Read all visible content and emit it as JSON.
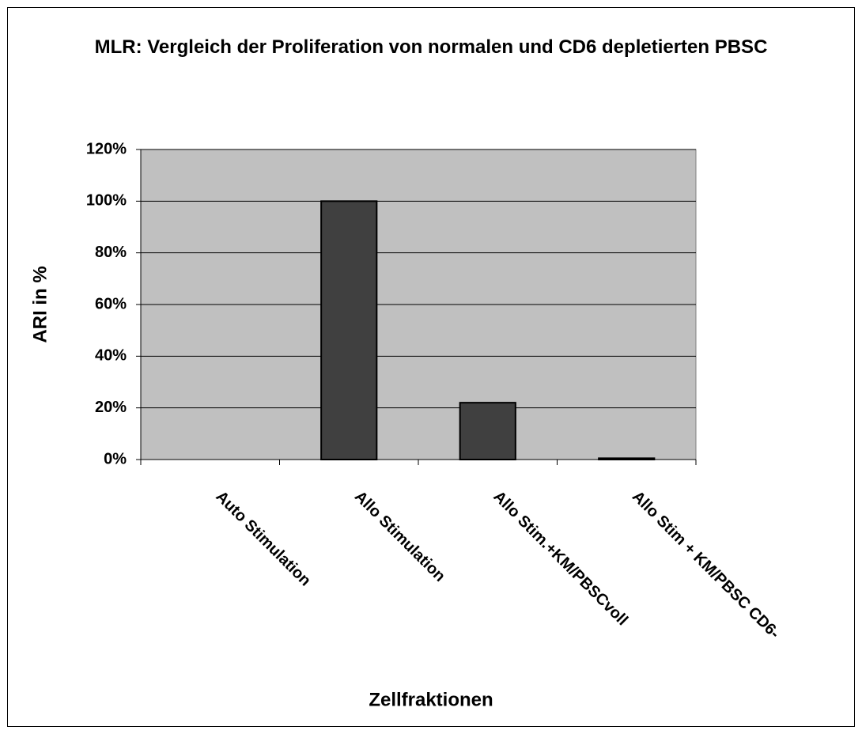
{
  "chart_data": {
    "type": "bar",
    "title": "MLR: Vergleich der Proliferation von normalen und CD6 depletierten PBSC",
    "x_label": "Zellfraktionen",
    "y_label": "ARI in %",
    "categories": [
      "Auto Stimulation",
      "Allo Stimulation",
      "Allo Stim.+KM/PBSCvoll",
      "Allo Stim + KM/PBSC CD6-"
    ],
    "values": [
      0,
      100,
      22,
      0.5
    ],
    "color": "#404040",
    "ylim": [
      0,
      120
    ],
    "yticks": [
      {
        "value": 0,
        "label": "0%"
      },
      {
        "value": 20,
        "label": "20%"
      },
      {
        "value": 40,
        "label": "40%"
      },
      {
        "value": 60,
        "label": "60%"
      },
      {
        "value": 80,
        "label": "80%"
      },
      {
        "value": 100,
        "label": "100%"
      },
      {
        "value": 120,
        "label": "120%"
      }
    ],
    "grid": true
  }
}
